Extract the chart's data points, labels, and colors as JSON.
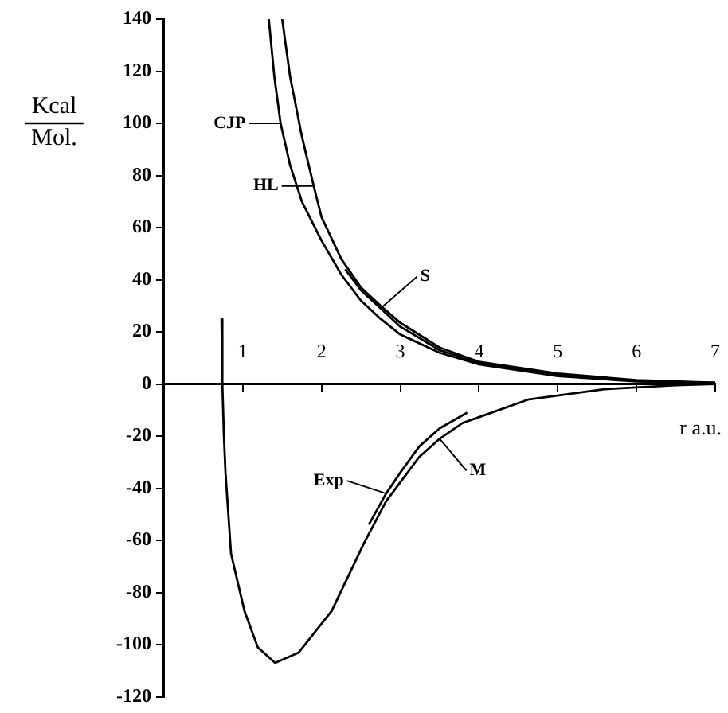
{
  "chart_data": {
    "type": "line",
    "ylabel": "Kcal\nMol.",
    "xlabel": "r a.u.",
    "xlim": [
      0,
      7
    ],
    "xticks": [
      1,
      2,
      3,
      4,
      5,
      6,
      7
    ],
    "ylim": [
      -120,
      140
    ],
    "yticks": [
      -120,
      -100,
      -80,
      -60,
      -40,
      -20,
      0,
      20,
      40,
      60,
      80,
      100,
      120,
      140
    ],
    "grid": false,
    "marker": "none",
    "line_style": "solid",
    "annotations": [
      {
        "text": "CJP",
        "x": 1.48,
        "y": 100
      },
      {
        "text": "HL",
        "x": 1.9,
        "y": 76
      },
      {
        "text": "S",
        "x": 2.75,
        "y": 29
      },
      {
        "text": "Exp",
        "x": 2.82,
        "y": -42
      },
      {
        "text": "M",
        "x": 3.5,
        "y": -21
      }
    ],
    "series": [
      {
        "color": "#000000",
        "x": [
          1.33,
          1.4,
          1.48,
          1.6,
          1.75,
          2.0,
          2.25,
          2.5,
          2.75,
          3.0,
          3.5,
          4.0,
          5.0,
          6.0,
          7.0
        ],
        "values": [
          140,
          118,
          100,
          84,
          70,
          55,
          42,
          32,
          25,
          19,
          12,
          7.5,
          3,
          1,
          0.5
        ]
      },
      {
        "color": "#000000",
        "x": [
          1.5,
          1.6,
          1.75,
          1.9,
          2.0,
          2.25,
          2.5,
          2.75,
          3.0,
          3.5,
          4.0,
          5.0,
          6.0,
          7.0
        ],
        "values": [
          140,
          118,
          95,
          76,
          64,
          48,
          37,
          30,
          23.5,
          14,
          8.5,
          4,
          1.5,
          0.5
        ]
      },
      {
        "color": "#000000",
        "x": [
          2.3,
          2.5,
          2.75,
          3.0,
          3.5,
          4.0,
          5.0,
          6.0,
          7.0
        ],
        "values": [
          44,
          36,
          29,
          22,
          13,
          8,
          3.5,
          1.2,
          0.3
        ]
      },
      {
        "color": "#000000",
        "x": [
          2.6,
          2.82,
          3.0,
          3.24,
          3.5,
          3.85
        ],
        "values": [
          -54,
          -42,
          -34,
          -24,
          -17,
          -11
        ]
      },
      {
        "color": "#000000",
        "x": [
          0.73,
          0.74,
          0.76,
          0.78,
          0.85,
          1.02,
          1.19,
          1.41,
          1.71,
          2.13,
          2.54,
          2.82,
          3.24,
          3.5,
          3.79,
          4.62,
          5.59,
          6.5,
          7.0
        ],
        "values": [
          25,
          0,
          -20,
          -34,
          -65,
          -87,
          -101,
          -107,
          -103,
          -87,
          -61,
          -45,
          -28,
          -21,
          -15,
          -6,
          -2,
          -0.5,
          0
        ]
      }
    ]
  }
}
